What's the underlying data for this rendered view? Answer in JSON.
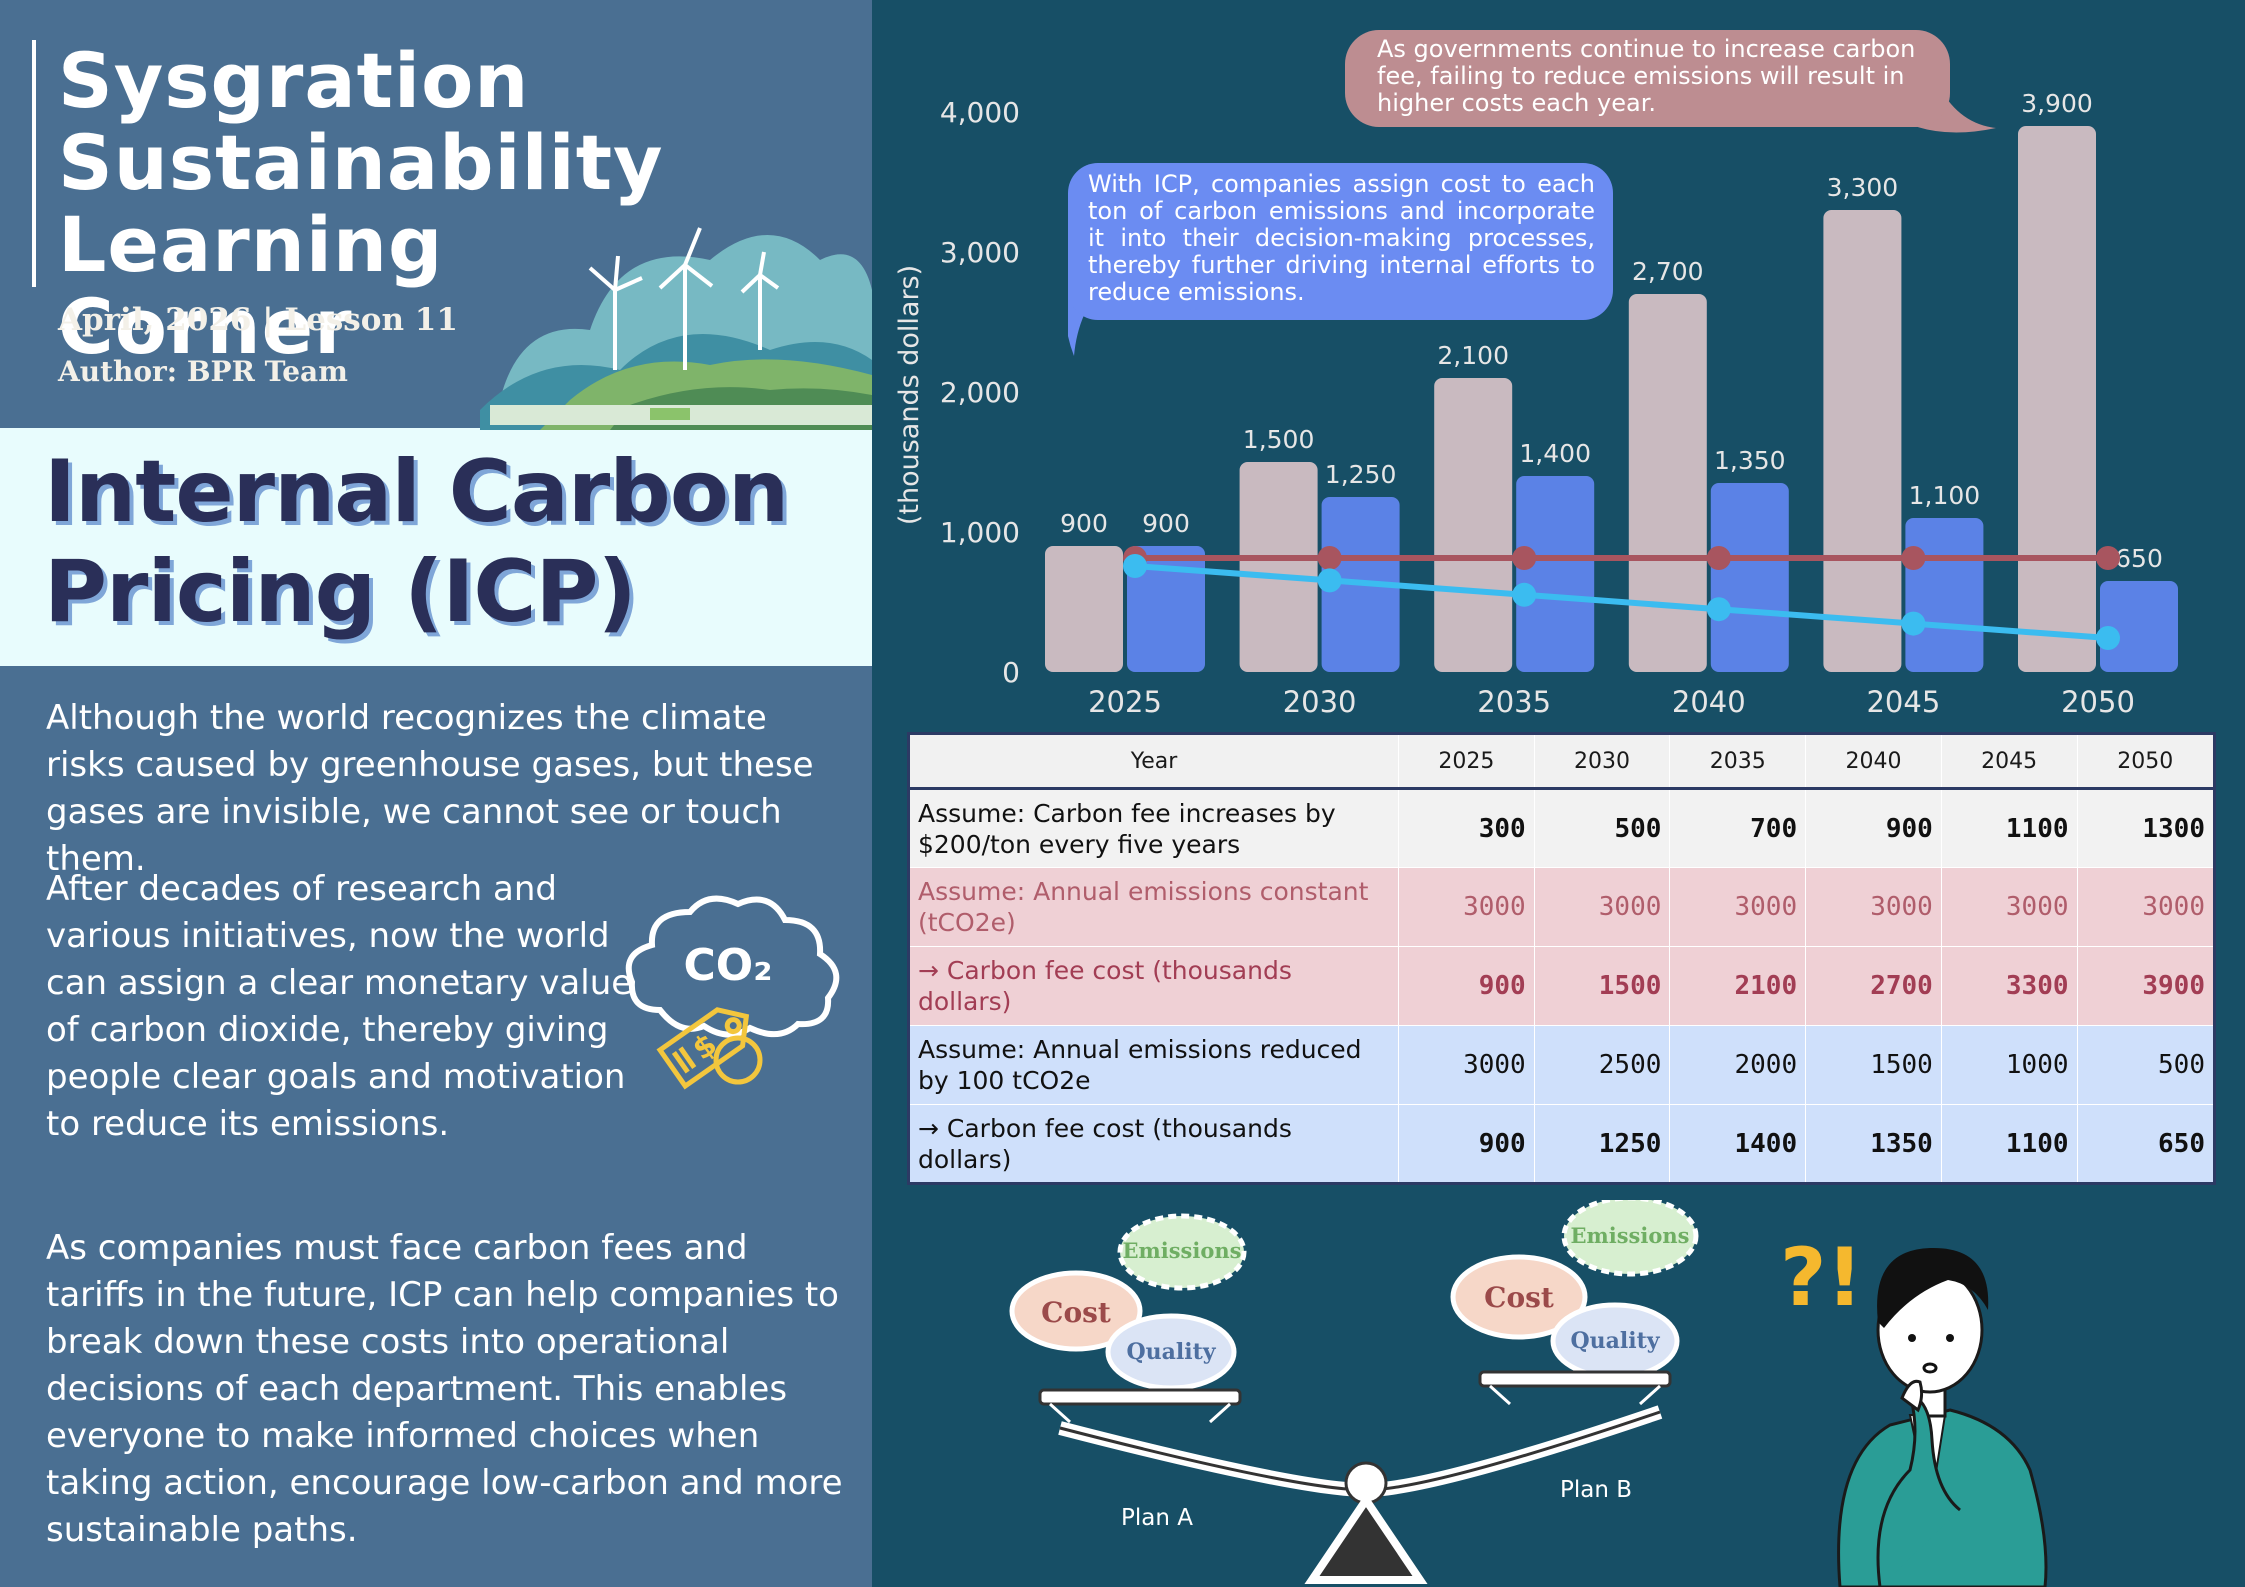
{
  "header": {
    "series_title": "Sysgration\nSustainability\nLearning Corner",
    "lesson_line": "April, 2026 | Lesson 11",
    "author_line": "Author: BPR Team"
  },
  "headline": "Internal Carbon\nPricing (ICP)",
  "paragraphs": [
    "Although the world recognizes the climate risks caused by greenhouse gases, but these gases are invisible, we cannot see or touch them.",
    "After decades of research and various initiatives, now the world can assign a clear monetary value of carbon dioxide, thereby giving people clear goals and motivation to reduce its emissions.",
    "As companies must face carbon fees and tariffs in the future, ICP can help companies to break down these costs into operational decisions of each department. This enables everyone to make informed choices when taking action, encourage low-carbon and more sustainable paths."
  ],
  "co2_label": "CO₂",
  "bubbles": {
    "icp": "With ICP, companies assign cost to each ton of carbon emissions and incorporate it into their decision-making processes, thereby further driving internal efforts to reduce emissions.",
    "fee": "As governments continue to increase carbon fee, failing to reduce emissions will result in higher costs each year."
  },
  "chart_data": {
    "type": "bar",
    "categories": [
      "2025",
      "2030",
      "2035",
      "2040",
      "2045",
      "2050"
    ],
    "ylabel": "(thousands dollars)",
    "ylim": [
      0,
      4000
    ],
    "yticks": [
      "0",
      "1,000",
      "2,000",
      "3,000",
      "4,000"
    ],
    "grid": false,
    "series": [
      {
        "type": "bar",
        "values": [
          900,
          1500,
          2100,
          2700,
          3300,
          3900
        ],
        "labels": [
          "900",
          "1,500",
          "2,100",
          "2,700",
          "3,300",
          "3,900"
        ],
        "color": "#c9bac0"
      },
      {
        "type": "bar",
        "values": [
          900,
          1250,
          1400,
          1350,
          1100,
          650
        ],
        "labels": [
          "900",
          "1,250",
          "1,400",
          "1,350",
          "1,100",
          "650"
        ],
        "color": "#5b82e6"
      },
      {
        "type": "line",
        "values": [
          3000,
          3000,
          3000,
          3000,
          3000,
          3000
        ],
        "color": "#a8555f"
      },
      {
        "type": "line",
        "values": [
          3000,
          2500,
          2000,
          1500,
          1000,
          500
        ],
        "color": "#3bbcf0"
      }
    ]
  },
  "table": {
    "header": [
      "Year",
      "2025",
      "2030",
      "2035",
      "2040",
      "2045",
      "2050"
    ],
    "rows": [
      {
        "label": "Assume: Carbon fee increases by $200/ton every five years",
        "values": [
          "300",
          "500",
          "700",
          "900",
          "1100",
          "1300"
        ]
      },
      {
        "label": "Assume: Annual emissions constant (tCO2e)",
        "values": [
          "3000",
          "3000",
          "3000",
          "3000",
          "3000",
          "3000"
        ]
      },
      {
        "label": "→ Carbon fee cost (thousands dollars)",
        "values": [
          "900",
          "1500",
          "2100",
          "2700",
          "3300",
          "3900"
        ]
      },
      {
        "label": "Assume: Annual emissions reduced by 100 tCO2e",
        "values": [
          "3000",
          "2500",
          "2000",
          "1500",
          "1000",
          "500"
        ]
      },
      {
        "label": "→ Carbon fee cost (thousands dollars)",
        "values": [
          "900",
          "1250",
          "1400",
          "1350",
          "1100",
          "650"
        ]
      }
    ]
  },
  "scale": {
    "plan_a": "Plan A",
    "plan_b": "Plan B",
    "left": {
      "emissions": "Emissions",
      "cost": "Cost",
      "quality": "Quality"
    },
    "right": {
      "emissions": "Emissions",
      "cost": "Cost",
      "quality": "Quality"
    }
  },
  "thinker": {
    "marks": "?!"
  }
}
